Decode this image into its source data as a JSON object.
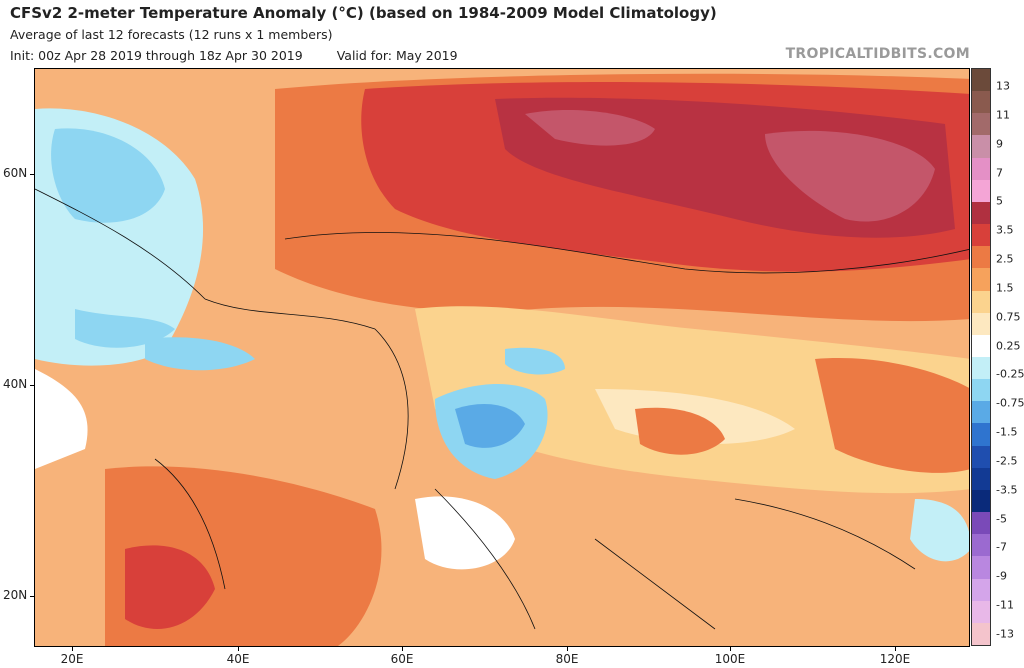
{
  "header": {
    "title": "CFSv2 2-meter Temperature Anomaly (°C) (based on 1984-2009 Model Climatology)",
    "subtitle": "Average of last 12 forecasts (12 runs x 1 members)",
    "init": "Init: 00z Apr 28 2019 through 18z Apr 30 2019",
    "valid": "Valid for: May 2019",
    "site": "TROPICALTIDBITS.COM"
  },
  "map": {
    "lat_labels": [
      "60N",
      "40N",
      "20N"
    ],
    "lon_labels": [
      "20E",
      "40E",
      "60E",
      "80E",
      "100E",
      "120E"
    ],
    "colors": {
      "ocean_base": "#f7b37a",
      "warm_0_25": "#fde8c0",
      "warm_0_75": "#fbd38e",
      "warm_1_5": "#f6a25c",
      "warm_2_5": "#ec7a44",
      "warm_3_5": "#d8403a",
      "warm_5": "#b83242",
      "warm_7": "#c4566a",
      "cool_0_25": "#c3eff7",
      "cool_0_75": "#8ed6f2",
      "cool_1_5": "#5aaae6",
      "neutral": "#ffffff"
    }
  },
  "colorbar": {
    "labels": [
      "13",
      "11",
      "9",
      "7",
      "5",
      "3.5",
      "2.5",
      "1.5",
      "0.75",
      "0.25",
      "-0.25",
      "-0.75",
      "-1.5",
      "-2.5",
      "-3.5",
      "-5",
      "-7",
      "-9",
      "-11",
      "-13"
    ],
    "colors": [
      "#6b4a3a",
      "#8a5a4e",
      "#a26a6a",
      "#c98fa8",
      "#e490c6",
      "#f4a5d6",
      "#b03040",
      "#d8403a",
      "#ec7a44",
      "#f6a25c",
      "#fbd38e",
      "#fde8c0",
      "#ffffff",
      "#c3eff7",
      "#8ed6f2",
      "#5aaae6",
      "#2f74cf",
      "#1f4eaf",
      "#123a94",
      "#0a2a7a",
      "#7a4ab8",
      "#9b6ad0",
      "#b987e0",
      "#d4a5ea",
      "#e8b8e8",
      "#f4c4cc"
    ]
  }
}
